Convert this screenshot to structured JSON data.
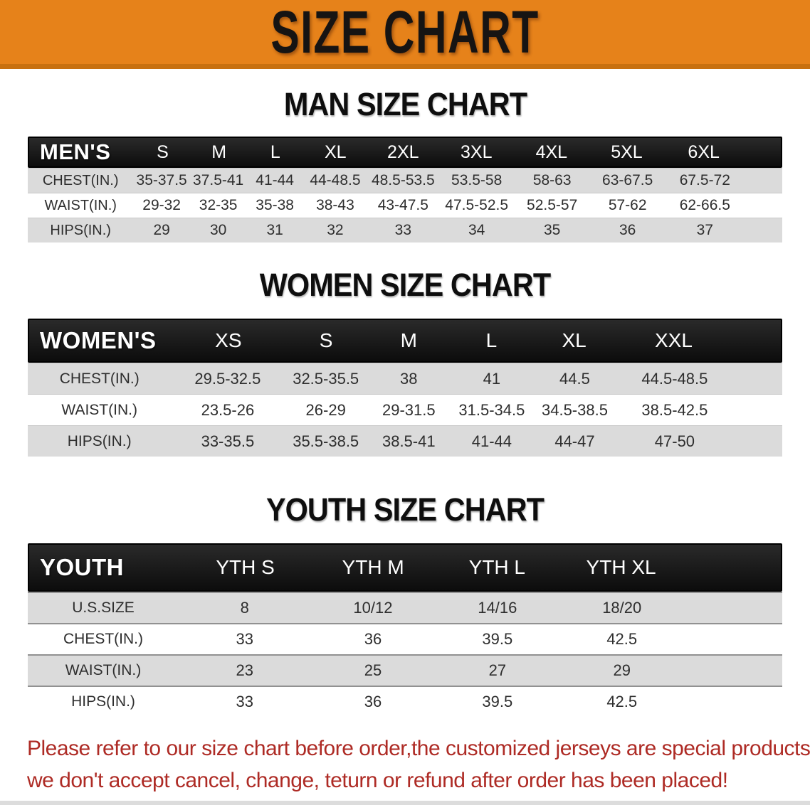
{
  "banner": {
    "title": "SIZE CHART",
    "bg_color": "#E6821A",
    "text_color": "#161413"
  },
  "sections": {
    "men": {
      "title": "MAN SIZE CHART",
      "header_label": "MEN'S",
      "columns": [
        "S",
        "M",
        "L",
        "XL",
        "2XL",
        "3XL",
        "4XL",
        "5XL",
        "6XL"
      ],
      "rows": [
        {
          "label": "CHEST(IN.)",
          "values": [
            "35-37.5",
            "37.5-41",
            "41-44",
            "44-48.5",
            "48.5-53.5",
            "53.5-58",
            "58-63",
            "63-67.5",
            "67.5-72"
          ]
        },
        {
          "label": "WAIST(IN.)",
          "values": [
            "29-32",
            "32-35",
            "35-38",
            "38-43",
            "43-47.5",
            "47.5-52.5",
            "52.5-57",
            "57-62",
            "62-66.5"
          ]
        },
        {
          "label": "HIPS(IN.)",
          "values": [
            "29",
            "30",
            "31",
            "32",
            "33",
            "34",
            "35",
            "36",
            "37"
          ]
        }
      ]
    },
    "women": {
      "title": "WOMEN SIZE CHART",
      "header_label": "WOMEN'S",
      "columns": [
        "XS",
        "S",
        "M",
        "L",
        "XL",
        "XXL"
      ],
      "rows": [
        {
          "label": "CHEST(IN.)",
          "values": [
            "29.5-32.5",
            "32.5-35.5",
            "38",
            "41",
            "44.5",
            "44.5-48.5"
          ]
        },
        {
          "label": "WAIST(IN.)",
          "values": [
            "23.5-26",
            "26-29",
            "29-31.5",
            "31.5-34.5",
            "34.5-38.5",
            "38.5-42.5"
          ]
        },
        {
          "label": "HIPS(IN.)",
          "values": [
            "33-35.5",
            "35.5-38.5",
            "38.5-41",
            "41-44",
            "44-47",
            "47-50"
          ]
        }
      ]
    },
    "youth": {
      "title": "YOUTH SIZE CHART",
      "header_label": "YOUTH",
      "columns": [
        "YTH S",
        "YTH M",
        "YTH L",
        "YTH XL"
      ],
      "rows": [
        {
          "label": "U.S.SIZE",
          "values": [
            "8",
            "10/12",
            "14/16",
            "18/20"
          ]
        },
        {
          "label": "CHEST(IN.)",
          "values": [
            "33",
            "36",
            "39.5",
            "42.5"
          ]
        },
        {
          "label": "WAIST(IN.)",
          "values": [
            "23",
            "25",
            "27",
            "29"
          ]
        },
        {
          "label": "HIPS(IN.)",
          "values": [
            "33",
            "36",
            "39.5",
            "42.5"
          ]
        }
      ]
    }
  },
  "disclaimer": {
    "line1": "Please refer to our size chart before order,the customized jerseys are special products,",
    "line2": "we don't accept cancel, change, teturn or refund after order has been placed!",
    "color": "#AE2B25"
  },
  "row_stripe_color": "#DBDBDB",
  "header_bar_color": "#161616",
  "chart_data": [
    {
      "type": "table",
      "title": "MAN SIZE CHART",
      "columns": [
        "MEN'S",
        "S",
        "M",
        "L",
        "XL",
        "2XL",
        "3XL",
        "4XL",
        "5XL",
        "6XL"
      ],
      "rows": [
        [
          "CHEST(IN.)",
          "35-37.5",
          "37.5-41",
          "41-44",
          "44-48.5",
          "48.5-53.5",
          "53.5-58",
          "58-63",
          "63-67.5",
          "67.5-72"
        ],
        [
          "WAIST(IN.)",
          "29-32",
          "32-35",
          "35-38",
          "38-43",
          "43-47.5",
          "47.5-52.5",
          "52.5-57",
          "57-62",
          "62-66.5"
        ],
        [
          "HIPS(IN.)",
          "29",
          "30",
          "31",
          "32",
          "33",
          "34",
          "35",
          "36",
          "37"
        ]
      ]
    },
    {
      "type": "table",
      "title": "WOMEN SIZE CHART",
      "columns": [
        "WOMEN'S",
        "XS",
        "S",
        "M",
        "L",
        "XL",
        "XXL"
      ],
      "rows": [
        [
          "CHEST(IN.)",
          "29.5-32.5",
          "32.5-35.5",
          "38",
          "41",
          "44.5",
          "44.5-48.5"
        ],
        [
          "WAIST(IN.)",
          "23.5-26",
          "26-29",
          "29-31.5",
          "31.5-34.5",
          "34.5-38.5",
          "38.5-42.5"
        ],
        [
          "HIPS(IN.)",
          "33-35.5",
          "35.5-38.5",
          "38.5-41",
          "41-44",
          "44-47",
          "47-50"
        ]
      ]
    },
    {
      "type": "table",
      "title": "YOUTH SIZE CHART",
      "columns": [
        "YOUTH",
        "YTH S",
        "YTH M",
        "YTH L",
        "YTH XL"
      ],
      "rows": [
        [
          "U.S.SIZE",
          "8",
          "10/12",
          "14/16",
          "18/20"
        ],
        [
          "CHEST(IN.)",
          "33",
          "36",
          "39.5",
          "42.5"
        ],
        [
          "WAIST(IN.)",
          "23",
          "25",
          "27",
          "29"
        ],
        [
          "HIPS(IN.)",
          "33",
          "36",
          "39.5",
          "42.5"
        ]
      ]
    }
  ]
}
